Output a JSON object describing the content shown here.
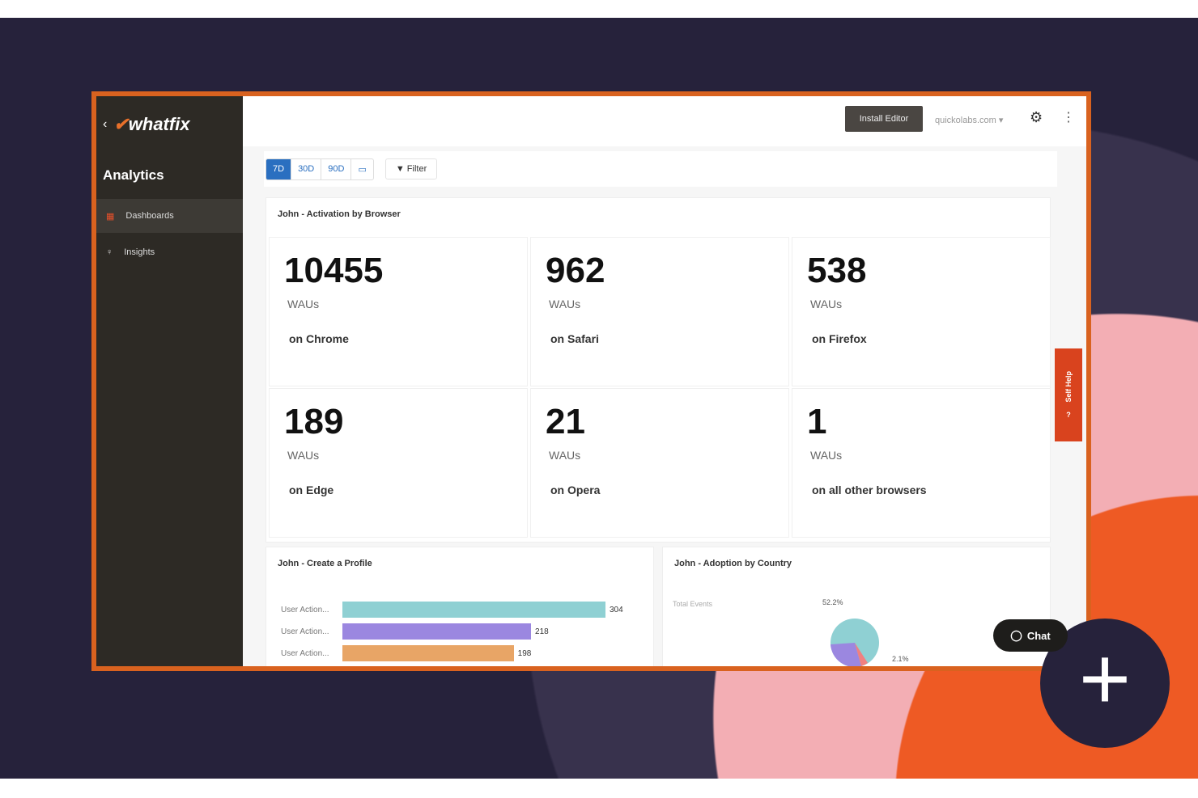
{
  "app": {
    "logo_text": "whatfix",
    "section_title": "Analytics"
  },
  "sidebar": {
    "items": [
      {
        "label": "Dashboards",
        "icon": "dashboard-icon",
        "active": true
      },
      {
        "label": "Insights",
        "icon": "lightbulb-icon",
        "active": false
      }
    ]
  },
  "header": {
    "install_label": "Install Editor",
    "domain": "quickolabs.com",
    "settings_icon": "gear-icon",
    "more_icon": "kebab-icon"
  },
  "toolbar": {
    "ranges": [
      "7D",
      "30D",
      "90D"
    ],
    "selected_range": "7D",
    "calendar_icon": "calendar-icon",
    "filter_label": "Filter"
  },
  "browser_card": {
    "title": "John - Activation by Browser",
    "kpis": [
      {
        "value": "10455",
        "unit": "WAUs",
        "label": "on Chrome"
      },
      {
        "value": "962",
        "unit": "WAUs",
        "label": "on Safari"
      },
      {
        "value": "538",
        "unit": "WAUs",
        "label": "on Firefox"
      },
      {
        "value": "189",
        "unit": "WAUs",
        "label": "on Edge"
      },
      {
        "value": "21",
        "unit": "WAUs",
        "label": "on Opera"
      },
      {
        "value": "1",
        "unit": "WAUs",
        "label": "on all other browsers"
      }
    ]
  },
  "profile_card": {
    "title": "John - Create a Profile",
    "bars": [
      {
        "label": "User Action...",
        "value": 304,
        "color": "#8fd0d3"
      },
      {
        "label": "User Action...",
        "value": 218,
        "color": "#9b87e0"
      },
      {
        "label": "User Action...",
        "value": 198,
        "color": "#e8a566"
      }
    ]
  },
  "country_card": {
    "title": "John - Adoption by Country",
    "legend": "Total Events",
    "pie_labels": [
      "52.2%",
      "2.1%"
    ],
    "colors": [
      "#8fd0d3",
      "#9b87e0",
      "#f08080"
    ]
  },
  "self_help": {
    "label": "Self Help"
  },
  "chat": {
    "label": "Chat"
  },
  "plus_symbol": "+"
}
